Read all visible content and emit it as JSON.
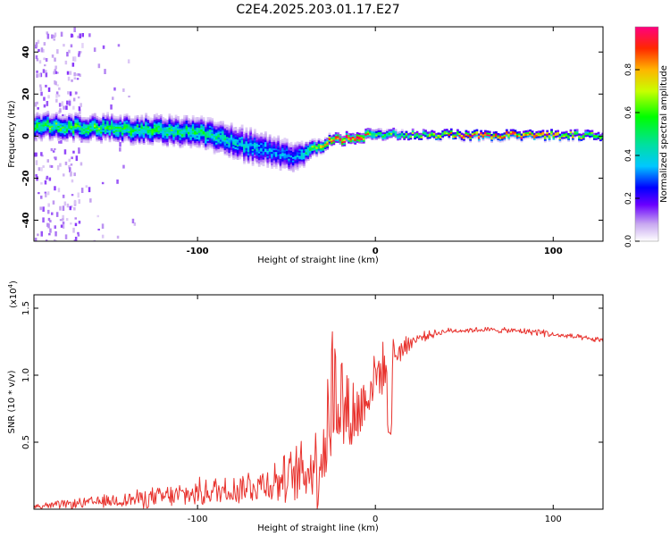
{
  "title": "C2E4.2025.203.01.17.E27",
  "colors": {
    "snr_line": "#e8332e",
    "axis": "#000000",
    "background": "#ffffff"
  },
  "chart_data": [
    {
      "type": "heatmap",
      "xlabel": "Height of straight line (km)",
      "ylabel": "Frequency (Hz)",
      "xlim": [
        -192,
        128
      ],
      "ylim": [
        -50,
        52
      ],
      "xticks": [
        -100,
        0,
        100
      ],
      "yticks": [
        -40,
        -20,
        0,
        20,
        40
      ],
      "colorbar": {
        "label": "Normalized spectral amplitude",
        "range": [
          0,
          1
        ],
        "ticks": [
          "0.0",
          "0.2",
          "0.4",
          "0.6",
          "0.8"
        ],
        "colormap": [
          "#ffffff",
          "#c8a8f0",
          "#6a00ff",
          "#0000ff",
          "#00c8ff",
          "#00e0a0",
          "#00ff00",
          "#c8ff00",
          "#ffb400",
          "#ff2800",
          "#ff0080"
        ]
      },
      "ridge": {
        "x": [
          -192,
          -150,
          -100,
          -70,
          -45,
          -35,
          -25,
          -10,
          0,
          20,
          60,
          100,
          128
        ],
        "center_hz": [
          5,
          4,
          2,
          -5,
          -10,
          -6,
          -2,
          0,
          1,
          1,
          0.5,
          0.5,
          0.5
        ],
        "half_width_hz": [
          5,
          5,
          6,
          7,
          6,
          3,
          2,
          2,
          2,
          1.5,
          1.5,
          1.5,
          1.5
        ],
        "peak_amplitude": [
          0.55,
          0.55,
          0.5,
          0.4,
          0.35,
          0.6,
          0.9,
          0.95,
          0.6,
          0.6,
          0.95,
          0.8,
          0.6
        ]
      },
      "noise_band_x": [
        -192,
        -165
      ]
    },
    {
      "type": "line",
      "xlabel": "Height of straight line (km)",
      "ylabel": "SNR (10 * v/v)",
      "y_multiplier_label": "(x10",
      "y_multiplier_exp": "4",
      "y_multiplier_close": ")",
      "xlim": [
        -192,
        128
      ],
      "ylim": [
        0,
        1.6
      ],
      "xticks": [
        -100,
        0,
        100
      ],
      "yticks": [
        0.5,
        1.0,
        1.5
      ],
      "ytick_labels": [
        "0.5",
        "1.0",
        "1.5"
      ],
      "series": [
        {
          "x": [
            -192,
            -180,
            -160,
            -140,
            -120,
            -100,
            -80,
            -60,
            -50,
            -40,
            -32,
            -28,
            -25,
            -22,
            -20,
            -15,
            -10,
            -5,
            0,
            5,
            10,
            15,
            20,
            25,
            30,
            40,
            60,
            80,
            95,
            100,
            110,
            120,
            128
          ],
          "values": [
            0.02,
            0.03,
            0.05,
            0.07,
            0.09,
            0.12,
            0.15,
            0.2,
            0.22,
            0.28,
            0.35,
            0.55,
            0.8,
            0.9,
            0.85,
            0.7,
            0.7,
            0.85,
            1.0,
            1.05,
            1.15,
            1.2,
            1.25,
            1.28,
            1.3,
            1.33,
            1.34,
            1.33,
            1.32,
            1.3,
            1.29,
            1.27,
            1.26
          ],
          "noise_amplitude": [
            0.02,
            0.03,
            0.04,
            0.06,
            0.08,
            0.1,
            0.12,
            0.15,
            0.18,
            0.25,
            0.35,
            0.5,
            0.6,
            0.6,
            0.45,
            0.35,
            0.3,
            0.25,
            0.2,
            0.18,
            0.15,
            0.1,
            0.06,
            0.04,
            0.03,
            0.02,
            0.02,
            0.02,
            0.03,
            0.02,
            0.02,
            0.02,
            0.02
          ]
        }
      ]
    }
  ]
}
